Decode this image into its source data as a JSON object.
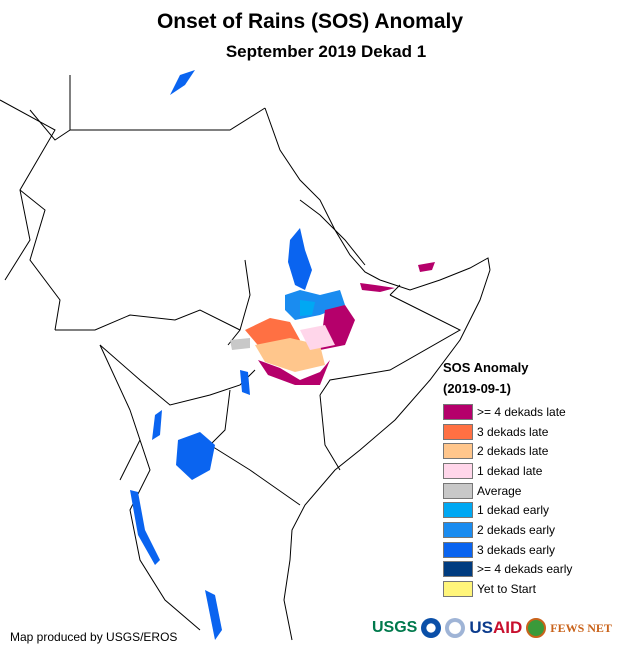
{
  "title": "Onset of Rains (SOS) Anomaly",
  "subtitle": "September 2019 Dekad 1",
  "legend": {
    "title": "SOS Anomaly",
    "date": "(2019-09-1)",
    "items": [
      {
        "label": ">= 4 dekads late",
        "color": "#b5006b"
      },
      {
        "label": "3 dekads late",
        "color": "#ff7043"
      },
      {
        "label": "2 dekads late",
        "color": "#ffc68c"
      },
      {
        "label": "1 dekad late",
        "color": "#ffd6ea"
      },
      {
        "label": "Average",
        "color": "#c8c8c8"
      },
      {
        "label": "1 dekad early",
        "color": "#00a8f3"
      },
      {
        "label": "2 dekads early",
        "color": "#1a8cf0"
      },
      {
        "label": "3 dekads early",
        "color": "#0a64f0"
      },
      {
        "label": ">= 4 dekads early",
        "color": "#003c80"
      },
      {
        "label": "Yet to Start",
        "color": "#fff57a"
      }
    ]
  },
  "credit": "Map produced by USGS/EROS",
  "logos": {
    "usgs": "USGS",
    "usaid_a": "US",
    "usaid_b": "AID",
    "fews": "FEWS NET"
  }
}
